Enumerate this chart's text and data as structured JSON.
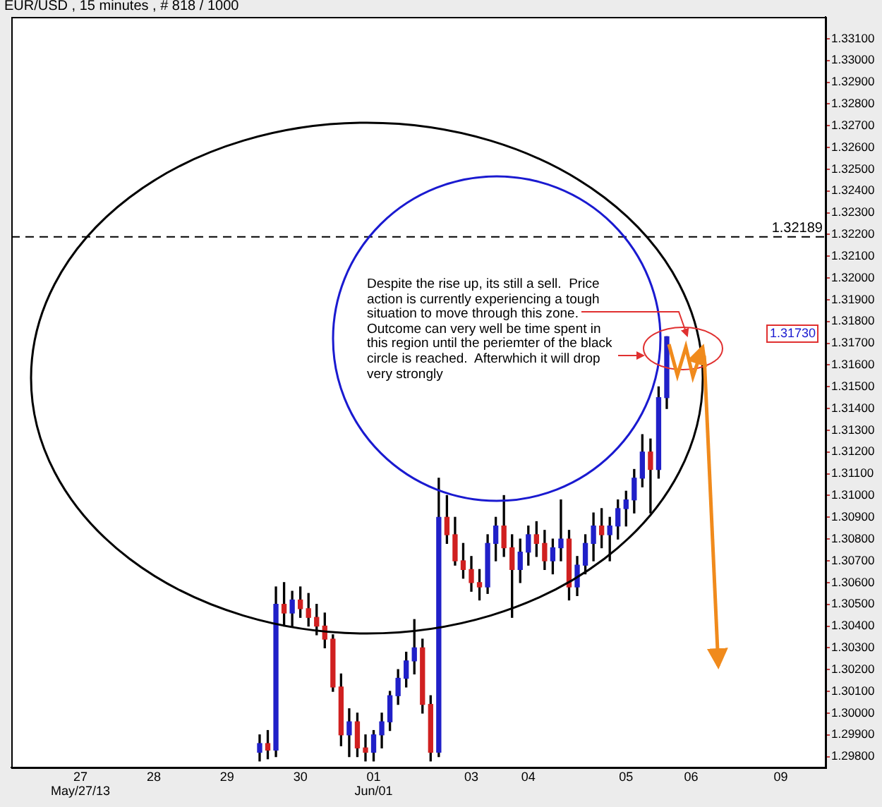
{
  "chart_data": {
    "type": "candlestick",
    "title": "EUR/USD , 15 minutes , # 818 / 1000",
    "categories": [
      null,
      null,
      null,
      null,
      null,
      null,
      null,
      null,
      "27\nMay/27/13",
      null,
      null,
      null,
      null,
      null,
      null,
      null,
      null,
      "28",
      null,
      null,
      null,
      null,
      null,
      null,
      null,
      null,
      "29",
      null,
      null,
      null,
      null,
      null,
      null,
      null,
      null,
      "30",
      null,
      null,
      null,
      null,
      null,
      null,
      null,
      null,
      "01\nJun/01",
      null,
      null,
      null,
      null,
      null,
      null,
      null,
      null,
      null,
      null,
      null,
      "03",
      null,
      null,
      null,
      null,
      null,
      null,
      "04",
      null,
      null,
      null,
      null,
      null,
      null,
      null,
      null,
      null,
      null,
      null,
      "05",
      null,
      null,
      null,
      null,
      null,
      null,
      null,
      "06",
      null,
      null,
      null,
      null,
      null,
      null,
      null,
      null,
      null,
      null,
      "09",
      null,
      null,
      null,
      null,
      null
    ],
    "ohlc": [
      null,
      null,
      null,
      null,
      null,
      null,
      null,
      null,
      null,
      null,
      null,
      null,
      null,
      null,
      null,
      null,
      null,
      null,
      null,
      null,
      null,
      null,
      null,
      null,
      null,
      null,
      null,
      null,
      null,
      null,
      [
        1.2982,
        1.299,
        1.2978,
        1.2986
      ],
      [
        1.2986,
        1.2992,
        1.2979,
        1.2983
      ],
      [
        1.2983,
        1.3058,
        1.298,
        1.305
      ],
      [
        1.305,
        1.306,
        1.304,
        1.3046
      ],
      [
        1.3046,
        1.3056,
        1.304,
        1.3052
      ],
      [
        1.3052,
        1.3058,
        1.3044,
        1.3048
      ],
      [
        1.3048,
        1.3055,
        1.304,
        1.3044
      ],
      [
        1.3044,
        1.305,
        1.3036,
        1.304
      ],
      [
        1.304,
        1.3046,
        1.303,
        1.3034
      ],
      [
        1.3034,
        1.3036,
        1.301,
        1.3012
      ],
      [
        1.3012,
        1.3018,
        1.2985,
        1.299
      ],
      [
        1.299,
        1.3002,
        1.298,
        1.2996
      ],
      [
        1.2996,
        1.3,
        1.298,
        1.2984
      ],
      [
        1.2984,
        1.299,
        1.2978,
        1.2982
      ],
      [
        1.2982,
        1.2992,
        1.2978,
        1.299
      ],
      [
        1.299,
        1.3,
        1.2984,
        1.2996
      ],
      [
        1.2996,
        1.301,
        1.2992,
        1.3008
      ],
      [
        1.3008,
        1.302,
        1.3004,
        1.3016
      ],
      [
        1.3016,
        1.3028,
        1.3012,
        1.3024
      ],
      [
        1.3024,
        1.3043,
        1.3018,
        1.303
      ],
      [
        1.303,
        1.3034,
        1.3,
        1.3004
      ],
      [
        1.3004,
        1.3008,
        1.2978,
        1.2982
      ],
      [
        1.2982,
        1.3108,
        1.298,
        1.309
      ],
      [
        1.309,
        1.31,
        1.3078,
        1.3082
      ],
      [
        1.3082,
        1.309,
        1.3068,
        1.307
      ],
      [
        1.307,
        1.3078,
        1.3062,
        1.3066
      ],
      [
        1.3066,
        1.3072,
        1.3056,
        1.306
      ],
      [
        1.306,
        1.3066,
        1.3052,
        1.3058
      ],
      [
        1.3058,
        1.3082,
        1.3055,
        1.3078
      ],
      [
        1.3078,
        1.309,
        1.307,
        1.3086
      ],
      [
        1.3086,
        1.31,
        1.3072,
        1.3076
      ],
      [
        1.3076,
        1.3082,
        1.3044,
        1.3066
      ],
      [
        1.3066,
        1.308,
        1.306,
        1.3074
      ],
      [
        1.3074,
        1.3086,
        1.3068,
        1.3082
      ],
      [
        1.3082,
        1.3088,
        1.3072,
        1.3078
      ],
      [
        1.3078,
        1.3084,
        1.3066,
        1.307
      ],
      [
        1.307,
        1.308,
        1.3064,
        1.3076
      ],
      [
        1.3076,
        1.3098,
        1.307,
        1.308
      ],
      [
        1.308,
        1.3084,
        1.3052,
        1.3058
      ],
      [
        1.3058,
        1.3072,
        1.3054,
        1.3068
      ],
      [
        1.3068,
        1.3082,
        1.3064,
        1.3078
      ],
      [
        1.3078,
        1.3092,
        1.307,
        1.3086
      ],
      [
        1.3086,
        1.3094,
        1.3076,
        1.3082
      ],
      [
        1.3082,
        1.309,
        1.307,
        1.3086
      ],
      [
        1.3086,
        1.3098,
        1.308,
        1.3094
      ],
      [
        1.3094,
        1.3102,
        1.3086,
        1.3098
      ],
      [
        1.3098,
        1.3112,
        1.3092,
        1.3108
      ],
      [
        1.3108,
        1.3128,
        1.3104,
        1.312
      ],
      [
        1.312,
        1.3126,
        1.3092,
        1.3112
      ],
      [
        1.3112,
        1.315,
        1.3108,
        1.3145
      ],
      [
        1.3145,
        1.3173,
        1.314,
        1.3173
      ],
      null,
      null,
      null,
      null,
      null,
      null,
      null,
      null,
      null,
      null,
      null,
      null,
      null,
      null,
      null,
      null,
      null,
      null,
      null
    ],
    "ylim": [
      1.2975,
      1.332
    ],
    "yticks": [
      {
        "value": 1.298,
        "label": "1.29800"
      },
      {
        "value": 1.299,
        "label": "1.29900"
      },
      {
        "value": 1.3,
        "label": "1.30000"
      },
      {
        "value": 1.301,
        "label": "1.30100"
      },
      {
        "value": 1.302,
        "label": "1.30200"
      },
      {
        "value": 1.303,
        "label": "1.30300"
      },
      {
        "value": 1.304,
        "label": "1.30400"
      },
      {
        "value": 1.305,
        "label": "1.30500"
      },
      {
        "value": 1.306,
        "label": "1.30600"
      },
      {
        "value": 1.307,
        "label": "1.30700"
      },
      {
        "value": 1.308,
        "label": "1.30800"
      },
      {
        "value": 1.309,
        "label": "1.30900"
      },
      {
        "value": 1.31,
        "label": "1.31000"
      },
      {
        "value": 1.311,
        "label": "1.31100"
      },
      {
        "value": 1.312,
        "label": "1.31200"
      },
      {
        "value": 1.313,
        "label": "1.31300"
      },
      {
        "value": 1.314,
        "label": "1.31400"
      },
      {
        "value": 1.315,
        "label": "1.31500"
      },
      {
        "value": 1.316,
        "label": "1.31600"
      },
      {
        "value": 1.317,
        "label": "1.31700"
      },
      {
        "value": 1.318,
        "label": "1.31800"
      },
      {
        "value": 1.319,
        "label": "1.31900"
      },
      {
        "value": 1.32,
        "label": "1.32000"
      },
      {
        "value": 1.321,
        "label": "1.32100"
      },
      {
        "value": 1.322,
        "label": "1.32200"
      },
      {
        "value": 1.323,
        "label": "1.32300"
      },
      {
        "value": 1.324,
        "label": "1.32400"
      },
      {
        "value": 1.325,
        "label": "1.32500"
      },
      {
        "value": 1.326,
        "label": "1.32600"
      },
      {
        "value": 1.327,
        "label": "1.32700"
      },
      {
        "value": 1.328,
        "label": "1.32800"
      },
      {
        "value": 1.329,
        "label": "1.32900"
      },
      {
        "value": 1.33,
        "label": "1.33000"
      },
      {
        "value": 1.331,
        "label": "1.33100"
      }
    ],
    "ref_lines": [
      {
        "axis": "y",
        "value": 1.32189,
        "label": "1.32189",
        "color": "#000000",
        "line_style": "dashed"
      }
    ],
    "annotations": [
      "Despite the rise up, its still a sell.  Price\naction is currently experiencing a tough\nsituation to move through this zone.\nOutcome can very well be time spent in\nthis region until the periemter of the black\ncircle is reached.  Afterwhich it will drop\nvery strongly",
      "1.31730"
    ]
  }
}
